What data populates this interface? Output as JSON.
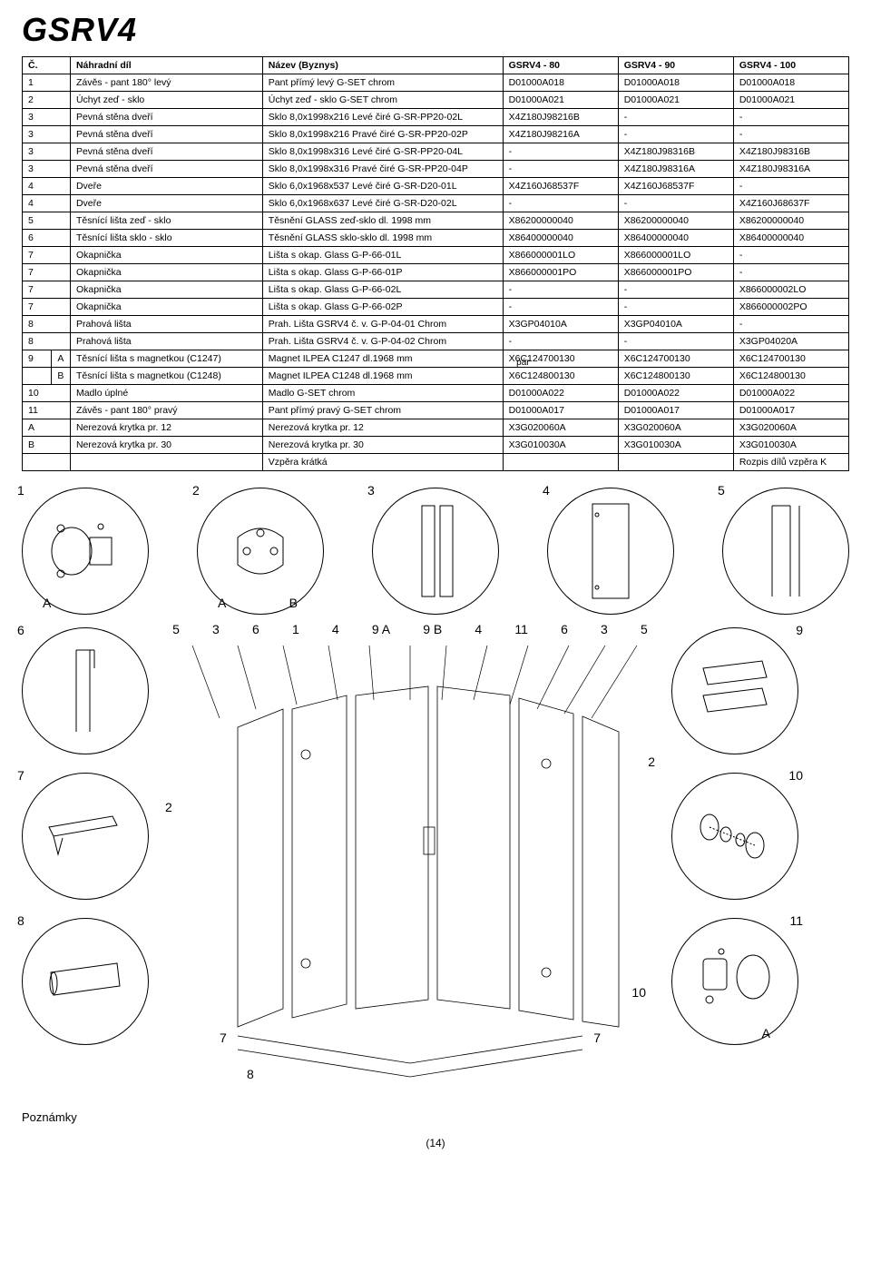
{
  "title": "GSRV4",
  "table": {
    "headers": [
      "Č.",
      "Náhradní díl",
      "Název (Byznys)",
      "GSRV4 - 80",
      "GSRV4 - 90",
      "GSRV4 - 100"
    ],
    "rows": [
      {
        "num": "1",
        "sub": "",
        "name": "Závěs - pant 180° levý",
        "byz": "Pant přímý levý G-SET chrom",
        "c1": "D01000A018",
        "c2": "D01000A018",
        "c3": "D01000A018"
      },
      {
        "num": "2",
        "sub": "",
        "name": "Úchyt zeď - sklo",
        "byz": "Úchyt zeď - sklo G-SET chrom",
        "c1": "D01000A021",
        "c2": "D01000A021",
        "c3": "D01000A021"
      },
      {
        "num": "3",
        "sub": "",
        "name": "Pevná stěna dveří",
        "byz": "Sklo 8,0x1998x216 Levé čiré G-SR-PP20-02L",
        "c1": "X4Z180J98216B",
        "c2": "-",
        "c3": "-"
      },
      {
        "num": "3",
        "sub": "",
        "name": "Pevná stěna dveří",
        "byz": "Sklo 8,0x1998x216 Pravé čiré G-SR-PP20-02P",
        "c1": "X4Z180J98216A",
        "c2": "-",
        "c3": "-"
      },
      {
        "num": "3",
        "sub": "",
        "name": "Pevná stěna dveří",
        "byz": "Sklo 8,0x1998x316 Levé čiré G-SR-PP20-04L",
        "c1": "-",
        "c2": "X4Z180J98316B",
        "c3": "X4Z180J98316B"
      },
      {
        "num": "3",
        "sub": "",
        "name": "Pevná stěna dveří",
        "byz": "Sklo 8,0x1998x316 Pravé čiré G-SR-PP20-04P",
        "c1": "-",
        "c2": "X4Z180J98316A",
        "c3": "X4Z180J98316A"
      },
      {
        "num": "4",
        "sub": "",
        "name": "Dveře",
        "byz": "Sklo 6,0x1968x537 Levé čiré G-SR-D20-01L",
        "c1": "X4Z160J68537F",
        "c2": "X4Z160J68537F",
        "c3": "-"
      },
      {
        "num": "4",
        "sub": "",
        "name": "Dveře",
        "byz": "Sklo 6,0x1968x637 Levé čiré G-SR-D20-02L",
        "c1": "-",
        "c2": "-",
        "c3": "X4Z160J68637F"
      },
      {
        "num": "5",
        "sub": "",
        "name": "Těsnící lišta zeď - sklo",
        "byz": "Těsnění GLASS zeď-sklo dl. 1998 mm",
        "c1": "X86200000040",
        "c2": "X86200000040",
        "c3": "X86200000040"
      },
      {
        "num": "6",
        "sub": "",
        "name": "Těsnící lišta sklo - sklo",
        "byz": "Těsnění GLASS sklo-sklo dl. 1998 mm",
        "c1": "X86400000040",
        "c2": "X86400000040",
        "c3": "X86400000040"
      },
      {
        "num": "7",
        "sub": "",
        "name": "Okapnička",
        "byz": "Lišta s okap. Glass G-P-66-01L",
        "c1": "X866000001LO",
        "c2": "X866000001LO",
        "c3": "-"
      },
      {
        "num": "7",
        "sub": "",
        "name": "Okapnička",
        "byz": "Lišta s okap. Glass G-P-66-01P",
        "c1": "X866000001PO",
        "c2": "X866000001PO",
        "c3": "-"
      },
      {
        "num": "7",
        "sub": "",
        "name": "Okapnička",
        "byz": "Lišta s okap. Glass G-P-66-02L",
        "c1": "-",
        "c2": "-",
        "c3": "X866000002LO"
      },
      {
        "num": "7",
        "sub": "",
        "name": "Okapnička",
        "byz": "Lišta s okap. Glass G-P-66-02P",
        "c1": "-",
        "c2": "-",
        "c3": "X866000002PO"
      },
      {
        "num": "8",
        "sub": "",
        "name": "Prahová lišta",
        "byz": "Prah. Lišta GSRV4 č. v. G-P-04-01 Chrom",
        "c1": "X3GP04010A",
        "c2": "X3GP04010A",
        "c3": "-"
      },
      {
        "num": "8",
        "sub": "",
        "name": "Prahová lišta",
        "byz": "Prah. Lišta GSRV4 č. v. G-P-04-02 Chrom",
        "c1": "-",
        "c2": "-",
        "c3": "X3GP04020A"
      },
      {
        "num": "9",
        "sub": "A",
        "name": "Těsnící lišta s magnetkou (C1247)",
        "byz": "Magnet ILPEA C1247 dl.1968 mm",
        "c1": "X6C124700130",
        "c2": "X6C124700130",
        "c3": "X6C124700130"
      },
      {
        "num": "",
        "sub": "B",
        "name": "Těsnící lišta s magnetkou (C1248)",
        "byz": "Magnet ILPEA C1248 dl.1968 mm",
        "c1": "X6C124800130",
        "c2": "X6C124800130",
        "c3": "X6C124800130"
      },
      {
        "num": "10",
        "sub": "",
        "name": "Madlo úplné",
        "byz": "Madlo G-SET chrom",
        "c1": "D01000A022",
        "c2": "D01000A022",
        "c3": "D01000A022"
      },
      {
        "num": "11",
        "sub": "",
        "name": "Závěs - pant 180° pravý",
        "byz": "Pant přímý pravý G-SET chrom",
        "c1": "D01000A017",
        "c2": "D01000A017",
        "c3": "D01000A017"
      },
      {
        "num": "A",
        "sub": "",
        "name": "Nerezová krytka pr. 12",
        "byz": "Nerezová krytka pr. 12",
        "c1": "X3G020060A",
        "c2": "X3G020060A",
        "c3": "X3G020060A"
      },
      {
        "num": "B",
        "sub": "",
        "name": "Nerezová krytka pr. 30",
        "byz": "Nerezová krytka pr. 30",
        "c1": "X3G010030A",
        "c2": "X3G010030A",
        "c3": "X3G010030A"
      },
      {
        "num": "",
        "sub": "",
        "name": "",
        "byz": "Vzpěra krátká",
        "c1": "",
        "c2": "",
        "c3": "Rozpis dílů vzpěra K"
      }
    ],
    "pair_label": "pár"
  },
  "diagrams": {
    "row1_labels": [
      "1",
      "2",
      "3",
      "4",
      "5"
    ],
    "row1_sublabels": {
      "0": "A",
      "1_left": "A",
      "1_right": "B"
    },
    "exploded_top_labels": [
      "5",
      "3",
      "6",
      "1",
      "4",
      "9 A",
      "9 B",
      "4",
      "11",
      "6",
      "3",
      "5"
    ],
    "side_labels": {
      "left_6": "6",
      "left_7": "7",
      "left_8": "8",
      "right_9": "9",
      "right_10": "10",
      "right_11": "11",
      "right_A": "A"
    },
    "inner_labels": {
      "l2a": "2",
      "r2": "2",
      "l7a": "7",
      "r7": "7",
      "l8": "8",
      "r10": "10"
    }
  },
  "footer": {
    "notes": "Poznámky",
    "page": "(14)"
  }
}
